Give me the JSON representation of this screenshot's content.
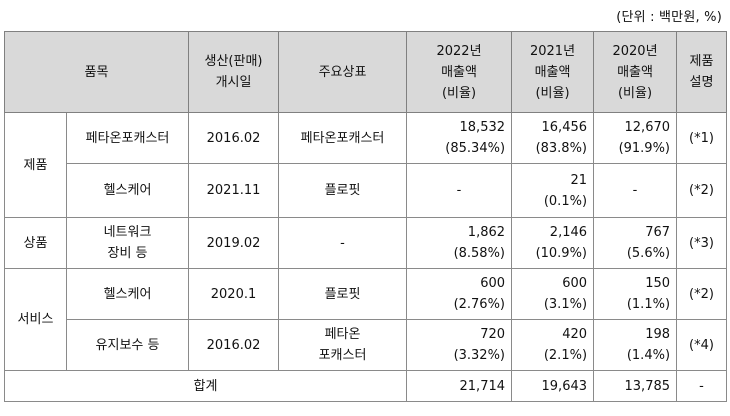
{
  "unit_note": "(단위 : 백만원, %)",
  "header": {
    "item": "품목",
    "launch_1": "생산(판매)",
    "launch_2": "개시일",
    "brand": "주요상표",
    "y2022_1": "2022년",
    "y2022_2": "매출액",
    "y2022_3": "(비율)",
    "y2021_1": "2021년",
    "y2021_2": "매출액",
    "y2021_3": "(비율)",
    "y2020_1": "2020년",
    "y2020_2": "매출액",
    "y2020_3": "(비율)",
    "desc_1": "제품",
    "desc_2": "설명"
  },
  "groups": {
    "product": "제품",
    "goods": "상품",
    "service": "서비스"
  },
  "rows": [
    {
      "item": "페타온포캐스터",
      "date": "2016.02",
      "brand": "페타온포캐스터",
      "v2022": "18,532",
      "p2022": "(85.34%)",
      "v2021": "16,456",
      "p2021": "(83.8%)",
      "v2020": "12,670",
      "p2020": "(91.9%)",
      "note": "(*1)"
    },
    {
      "item": "헬스케어",
      "date": "2021.11",
      "brand": "플로핏",
      "v2022": "-",
      "v2021": "21",
      "p2021": "(0.1%)",
      "v2020": "-",
      "note": "(*2)"
    },
    {
      "item_1": "네트워크",
      "item_2": "장비 등",
      "date": "2019.02",
      "brand": "-",
      "v2022": "1,862",
      "p2022": "(8.58%)",
      "v2021": "2,146",
      "p2021": "(10.9%)",
      "v2020": "767",
      "p2020": "(5.6%)",
      "note": "(*3)"
    },
    {
      "item": "헬스케어",
      "date": "2020.1",
      "brand": "플로핏",
      "v2022": "600",
      "p2022": "(2.76%)",
      "v2021": "600",
      "p2021": "(3.1%)",
      "v2020": "150",
      "p2020": "(1.1%)",
      "note": "(*2)"
    },
    {
      "item": "유지보수 등",
      "date": "2016.02",
      "brand_1": "페타온",
      "brand_2": "포캐스터",
      "v2022": "720",
      "p2022": "(3.32%)",
      "v2021": "420",
      "p2021": "(2.1%)",
      "v2020": "198",
      "p2020": "(1.4%)",
      "note": "(*4)"
    }
  ],
  "total": {
    "label": "합계",
    "v2022": "21,714",
    "v2021": "19,643",
    "v2020": "13,785",
    "note": "-"
  }
}
